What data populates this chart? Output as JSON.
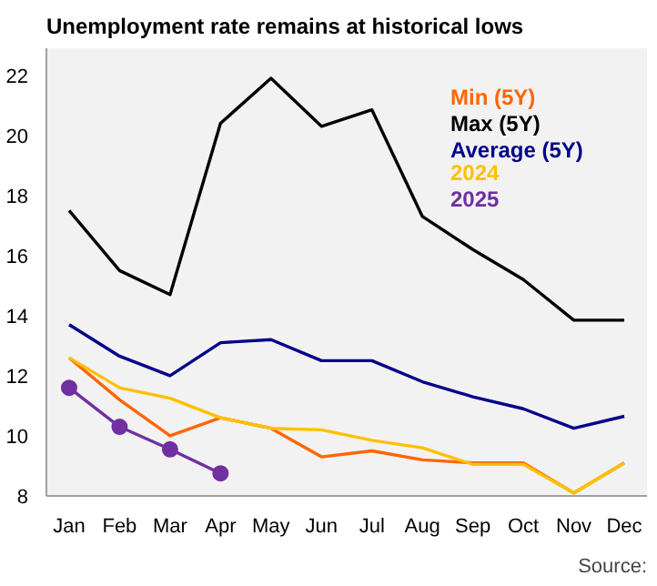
{
  "chart_data": {
    "type": "line",
    "title": "Unemployment rate remains at historical lows",
    "categories": [
      "Jan",
      "Feb",
      "Mar",
      "Apr",
      "May",
      "Jun",
      "Jul",
      "Aug",
      "Sep",
      "Oct",
      "Nov",
      "Dec"
    ],
    "series": [
      {
        "name": "Min (5Y)",
        "color": "#ff6600",
        "values": [
          12.6,
          11.2,
          10.0,
          10.6,
          10.25,
          9.3,
          9.5,
          9.2,
          9.1,
          9.1,
          8.1,
          9.1
        ]
      },
      {
        "name": "Max (5Y)",
        "color": "#000000",
        "values": [
          17.5,
          15.5,
          14.7,
          20.4,
          21.9,
          20.3,
          20.85,
          17.3,
          16.2,
          15.2,
          13.85,
          13.85
        ]
      },
      {
        "name": "Average (5Y)",
        "color": "#00008b",
        "values": [
          13.7,
          12.65,
          12.0,
          13.1,
          13.2,
          12.5,
          12.5,
          11.8,
          11.3,
          10.9,
          10.25,
          10.65
        ]
      },
      {
        "name": "2024",
        "color": "#ffc000",
        "values": [
          12.6,
          11.6,
          11.25,
          10.6,
          10.25,
          10.2,
          9.85,
          9.6,
          9.05,
          9.05,
          8.1,
          9.1
        ]
      },
      {
        "name": "2025",
        "color": "#7030a0",
        "marker": "circle",
        "values": [
          11.6,
          10.3,
          9.55,
          8.75,
          null,
          null,
          null,
          null,
          null,
          null,
          null,
          null
        ]
      }
    ],
    "ylim": [
      8,
      22.9
    ],
    "yticks": [
      8,
      10,
      12,
      14,
      16,
      18,
      20,
      22
    ],
    "grid": false,
    "legend": "top right",
    "marker": "none",
    "line_style": "solid",
    "annotations": [
      "Source:"
    ]
  }
}
